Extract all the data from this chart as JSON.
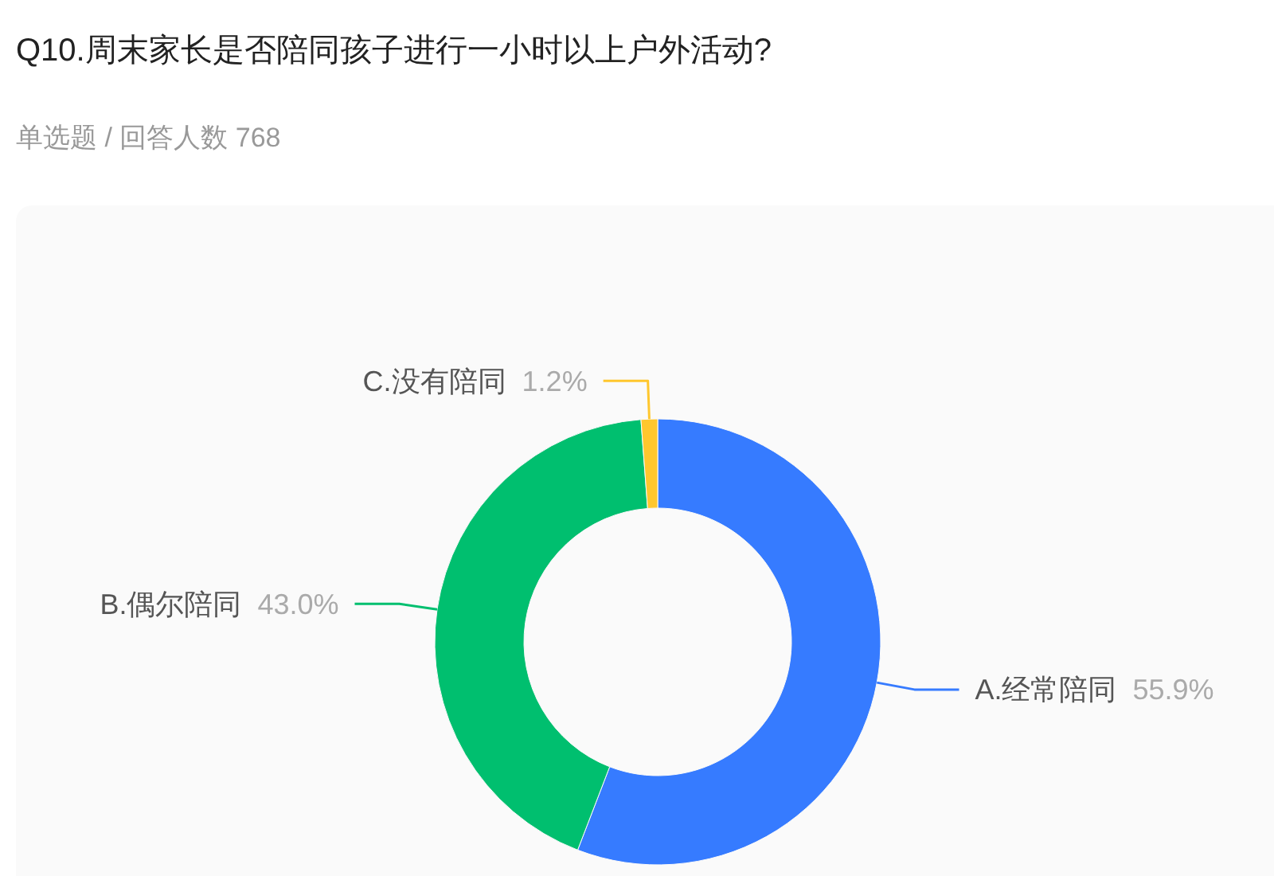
{
  "chart_data": {
    "type": "donut",
    "title": "Q10.周末家长是否陪同孩子进行一小时以上户外活动?",
    "subtitle": "单选题 / 回答人数 768",
    "categories": [
      "A.经常陪同",
      "B.偶尔陪同",
      "C.没有陪同"
    ],
    "values": [
      55.9,
      43.0,
      1.2
    ],
    "colors": [
      "#367bff",
      "#00bf6f",
      "#ffc72e"
    ],
    "value_labels": [
      "55.9%",
      "43.0%",
      "1.2%"
    ]
  }
}
